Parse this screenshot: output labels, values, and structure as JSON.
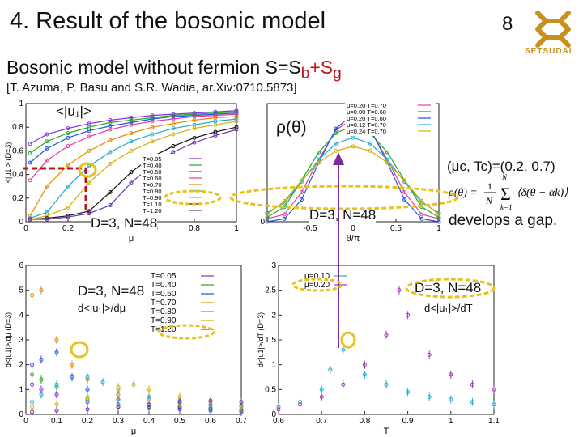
{
  "header": {
    "title": "4. Result of the bosonic model",
    "page_number": "8",
    "logo_text": "SETSUDAI"
  },
  "subtitle": {
    "prefix": "Bosonic model without fermion S=S",
    "sub1": "b",
    "plus": "+S",
    "sub2": "g"
  },
  "reference": "[T. Azuma, P. Basu and S.R. Wadia, ar.Xiv:0710.5873]",
  "annotations": {
    "u1_label": "<|u₁|>",
    "rho_label": "ρ(θ)",
    "dn1": "D=3, N=48",
    "dn2": "D=3, N=48",
    "dn3": "D=3, N=48",
    "dn4": "D=3, N=48",
    "critical": "(μc, Tc)=(0.2, 0.7)",
    "gap": "develops a gap.",
    "deriv_mu": "d<|u₁|>/dμ",
    "deriv_T": "d<|u₁|>/dT"
  },
  "colors": {
    "accent_red": "#c0141a",
    "highlight": "#e8c21a",
    "arrow": "#7a2a9a"
  },
  "chart_data": [
    {
      "type": "line",
      "xlabel": "μ",
      "ylabel": "<|u1|> (D=3)",
      "xlim": [
        0,
        1
      ],
      "ylim": [
        0,
        1
      ],
      "xticks": [
        "0",
        "0.2",
        "0.4",
        "0.6",
        "0.8",
        "1"
      ],
      "yticks": [
        "0",
        "0.2",
        "0.4",
        "0.6",
        "0.8",
        "1"
      ],
      "legend": [
        "T=0.05",
        "T=0.40",
        "T=0.50",
        "T=0.60",
        "T=0.70",
        "T=0.80",
        "T=0.90",
        "T=1.10",
        "T=1.20"
      ],
      "series": [
        {
          "name": "T=0.05",
          "color": "#8a2be2",
          "x": [
            0.02,
            0.1,
            0.2,
            0.3,
            0.4,
            0.5,
            0.6,
            0.7,
            0.8,
            0.9,
            1.0
          ],
          "y": [
            0.66,
            0.74,
            0.79,
            0.83,
            0.86,
            0.88,
            0.9,
            0.91,
            0.92,
            0.93,
            0.94
          ]
        },
        {
          "name": "T=0.40",
          "color": "#22aa22",
          "x": [
            0.02,
            0.1,
            0.2,
            0.3,
            0.4,
            0.5,
            0.6,
            0.7,
            0.8,
            0.9,
            1.0
          ],
          "y": [
            0.58,
            0.68,
            0.75,
            0.8,
            0.84,
            0.86,
            0.88,
            0.9,
            0.91,
            0.92,
            0.93
          ]
        },
        {
          "name": "T=0.50",
          "color": "#2255dd",
          "x": [
            0.02,
            0.1,
            0.2,
            0.3,
            0.4,
            0.5,
            0.6,
            0.7,
            0.8,
            0.9,
            1.0
          ],
          "y": [
            0.5,
            0.62,
            0.71,
            0.77,
            0.81,
            0.84,
            0.87,
            0.89,
            0.9,
            0.91,
            0.92
          ]
        },
        {
          "name": "T=0.60",
          "color": "#e040a0",
          "x": [
            0.02,
            0.1,
            0.2,
            0.3,
            0.4,
            0.5,
            0.6,
            0.7,
            0.8,
            0.9,
            1.0
          ],
          "y": [
            0.35,
            0.52,
            0.64,
            0.72,
            0.78,
            0.82,
            0.85,
            0.87,
            0.89,
            0.9,
            0.91
          ]
        },
        {
          "name": "T=0.70",
          "color": "#e08a00",
          "x": [
            0.02,
            0.1,
            0.2,
            0.3,
            0.4,
            0.5,
            0.6,
            0.7,
            0.8,
            0.9,
            1.0
          ],
          "y": [
            0.05,
            0.3,
            0.48,
            0.6,
            0.69,
            0.75,
            0.8,
            0.83,
            0.86,
            0.88,
            0.89
          ]
        },
        {
          "name": "T=0.80",
          "color": "#22aacc",
          "x": [
            0.02,
            0.1,
            0.2,
            0.3,
            0.4,
            0.5,
            0.6,
            0.7,
            0.8,
            0.9,
            1.0
          ],
          "y": [
            0.03,
            0.08,
            0.3,
            0.47,
            0.59,
            0.68,
            0.74,
            0.79,
            0.82,
            0.85,
            0.87
          ]
        },
        {
          "name": "T=0.90",
          "color": "#d4b000",
          "x": [
            0.02,
            0.1,
            0.2,
            0.3,
            0.4,
            0.5,
            0.6,
            0.7,
            0.8,
            0.9,
            1.0
          ],
          "y": [
            0.02,
            0.05,
            0.12,
            0.33,
            0.49,
            0.6,
            0.68,
            0.74,
            0.79,
            0.82,
            0.85
          ]
        },
        {
          "name": "T=1.10",
          "color": "#111111",
          "x": [
            0.02,
            0.1,
            0.2,
            0.3,
            0.4,
            0.5,
            0.6,
            0.7,
            0.8,
            0.9,
            1.0
          ],
          "y": [
            0.02,
            0.03,
            0.05,
            0.09,
            0.25,
            0.42,
            0.55,
            0.64,
            0.71,
            0.76,
            0.8
          ]
        },
        {
          "name": "T=1.20",
          "color": "#6a3ab0",
          "x": [
            0.02,
            0.1,
            0.2,
            0.3,
            0.4,
            0.5,
            0.6,
            0.7,
            0.8,
            0.9,
            1.0
          ],
          "y": [
            0.02,
            0.02,
            0.04,
            0.07,
            0.14,
            0.33,
            0.48,
            0.59,
            0.67,
            0.73,
            0.78
          ]
        }
      ]
    },
    {
      "type": "line",
      "xlabel": "θ/π",
      "ylabel": "",
      "xlim": [
        -1,
        1
      ],
      "ylim": [
        0,
        0.8
      ],
      "xticks": [
        "-0.5",
        "0",
        "0.5",
        "1"
      ],
      "yticks": [
        "0"
      ],
      "legend": [
        "μ=0.20  T=0.70",
        "μ=0.00  T=0.60",
        "μ=0.20  T=0.60",
        "μ=0.12  T=0.70",
        "μ=0.24  T=0.70"
      ],
      "series": [
        {
          "name": "μ=0.20  T=0.70",
          "color": "#e040a0",
          "x": [
            -1,
            -0.8,
            -0.6,
            -0.4,
            -0.2,
            0,
            0.2,
            0.4,
            0.6,
            0.8,
            1
          ],
          "y": [
            0.02,
            0.05,
            0.2,
            0.42,
            0.62,
            0.7,
            0.62,
            0.42,
            0.2,
            0.05,
            0.02
          ]
        },
        {
          "name": "μ=0.00  T=0.60",
          "color": "#22aa22",
          "x": [
            -1,
            -0.8,
            -0.6,
            -0.4,
            -0.2,
            0,
            0.2,
            0.4,
            0.6,
            0.8,
            1
          ],
          "y": [
            0.03,
            0.1,
            0.28,
            0.47,
            0.6,
            0.65,
            0.6,
            0.47,
            0.28,
            0.1,
            0.03
          ]
        },
        {
          "name": "μ=0.20  T=0.60",
          "color": "#2255dd",
          "x": [
            -1,
            -0.8,
            -0.6,
            -0.4,
            -0.2,
            0,
            0.2,
            0.4,
            0.6,
            0.8,
            1
          ],
          "y": [
            0.0,
            0.02,
            0.15,
            0.4,
            0.63,
            0.73,
            0.63,
            0.4,
            0.15,
            0.02,
            0.0
          ]
        },
        {
          "name": "μ=0.12  T=0.70",
          "color": "#22aacc",
          "x": [
            -1,
            -0.8,
            -0.6,
            -0.4,
            -0.2,
            0,
            0.2,
            0.4,
            0.6,
            0.8,
            1
          ],
          "y": [
            0.06,
            0.13,
            0.27,
            0.42,
            0.53,
            0.57,
            0.53,
            0.42,
            0.27,
            0.13,
            0.06
          ]
        },
        {
          "name": "μ=0.24  T=0.70",
          "color": "#d4b000",
          "x": [
            -1,
            -0.8,
            -0.6,
            -0.4,
            -0.2,
            0,
            0.2,
            0.4,
            0.6,
            0.8,
            1
          ],
          "y": [
            0.05,
            0.14,
            0.28,
            0.4,
            0.48,
            0.51,
            0.48,
            0.4,
            0.28,
            0.14,
            0.05
          ]
        }
      ]
    },
    {
      "type": "scatter",
      "xlabel": "μ",
      "ylabel": "d<|u1|>/dμ (D=3)",
      "xlim": [
        0,
        0.7
      ],
      "ylim": [
        0,
        6
      ],
      "xticks": [
        "0",
        "0.1",
        "0.2",
        "0.3",
        "0.4",
        "0.5",
        "0.6",
        "0.7"
      ],
      "yticks": [
        "0",
        "1",
        "2",
        "3",
        "4",
        "5",
        "6"
      ],
      "legend": [
        "T=0.05",
        "T=0.40",
        "T=0.60",
        "T=0.70",
        "T=0.80",
        "T=0.90",
        "T=1.20"
      ],
      "series": [
        {
          "name": "T=0.05",
          "color": "#8a2be2",
          "x": [
            0.02,
            0.05,
            0.1,
            0.2,
            0.3,
            0.4,
            0.5,
            0.6,
            0.7
          ],
          "y": [
            1.2,
            1.0,
            0.8,
            0.5,
            0.3,
            0.25,
            0.2,
            0.15,
            0.1
          ]
        },
        {
          "name": "T=0.40",
          "color": "#22aa22",
          "x": [
            0.02,
            0.05,
            0.1,
            0.2,
            0.3,
            0.4,
            0.5,
            0.6,
            0.7
          ],
          "y": [
            1.6,
            1.4,
            1.1,
            0.6,
            0.4,
            0.3,
            0.25,
            0.2,
            0.15
          ]
        },
        {
          "name": "T=0.60",
          "color": "#2255dd",
          "x": [
            0.02,
            0.05,
            0.1,
            0.15,
            0.2,
            0.3,
            0.4,
            0.5,
            0.6,
            0.7
          ],
          "y": [
            2.0,
            2.2,
            2.5,
            1.5,
            1.0,
            0.6,
            0.4,
            0.3,
            0.25,
            0.2
          ]
        },
        {
          "name": "T=0.70",
          "color": "#e08a00",
          "x": [
            0.02,
            0.05,
            0.1,
            0.15,
            0.2,
            0.3,
            0.4,
            0.5,
            0.6,
            0.7
          ],
          "y": [
            4.8,
            5.0,
            3.0,
            2.0,
            1.4,
            0.8,
            0.6,
            0.45,
            0.35,
            0.3
          ]
        },
        {
          "name": "T=0.80",
          "color": "#22aacc",
          "x": [
            0.02,
            0.05,
            0.1,
            0.2,
            0.25,
            0.3,
            0.4,
            0.5,
            0.6,
            0.7
          ],
          "y": [
            0.5,
            0.8,
            1.2,
            1.5,
            1.3,
            1.0,
            0.7,
            0.55,
            0.4,
            0.35
          ]
        },
        {
          "name": "T=0.90",
          "color": "#d4b000",
          "x": [
            0.02,
            0.1,
            0.2,
            0.3,
            0.35,
            0.4,
            0.5,
            0.6,
            0.7
          ],
          "y": [
            0.3,
            0.4,
            0.7,
            1.1,
            1.2,
            1.0,
            0.7,
            0.5,
            0.4
          ]
        },
        {
          "name": "T=1.20",
          "color": "#6a3ab0",
          "x": [
            0.02,
            0.1,
            0.2,
            0.3,
            0.4,
            0.5,
            0.6,
            0.7
          ],
          "y": [
            0.1,
            0.15,
            0.2,
            0.3,
            0.4,
            0.5,
            0.55,
            0.5
          ]
        }
      ]
    },
    {
      "type": "scatter",
      "xlabel": "T",
      "ylabel": "d<|u1|>/dT (D=3)",
      "xlim": [
        0.6,
        1.1
      ],
      "ylim": [
        0,
        3
      ],
      "xticks": [
        "0.6",
        "0.7",
        "0.8",
        "0.9",
        "1",
        "1.1"
      ],
      "yticks": [
        "0",
        "0.5",
        "1",
        "1.5",
        "2",
        "2.5",
        "3"
      ],
      "legend": [
        "μ=0.10",
        "μ=0.20"
      ],
      "series": [
        {
          "name": "μ=0.10",
          "color": "#22aacc",
          "x": [
            0.6,
            0.65,
            0.7,
            0.72,
            0.75,
            0.8,
            0.85,
            0.9,
            0.95,
            1.0,
            1.05,
            1.1
          ],
          "y": [
            0.15,
            0.25,
            0.5,
            0.9,
            1.3,
            0.8,
            0.6,
            0.45,
            0.35,
            0.3,
            0.25,
            0.2
          ]
        },
        {
          "name": "μ=0.20",
          "color": "#9a3ab0",
          "x": [
            0.6,
            0.65,
            0.7,
            0.75,
            0.8,
            0.85,
            0.88,
            0.9,
            0.95,
            1.0,
            1.05,
            1.1
          ],
          "y": [
            0.1,
            0.2,
            0.35,
            0.6,
            1.0,
            1.6,
            2.5,
            2.0,
            1.2,
            0.8,
            0.6,
            0.5
          ]
        }
      ]
    }
  ]
}
